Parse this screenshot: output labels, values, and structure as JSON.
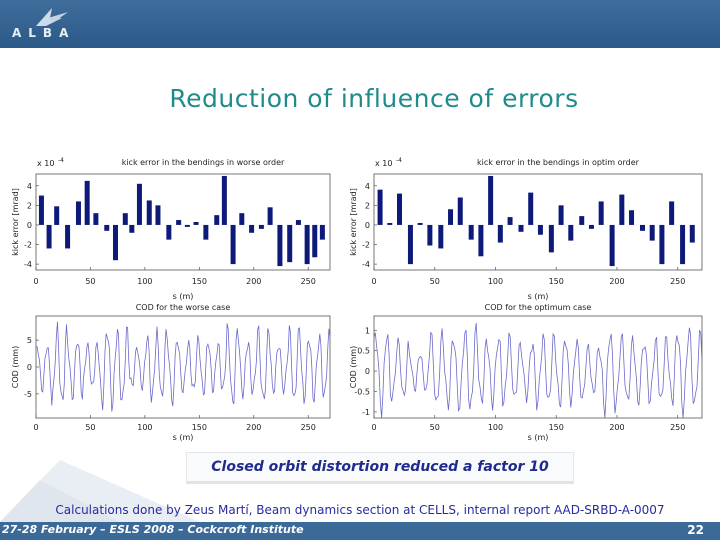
{
  "header": {
    "logo_text": "ALBA",
    "colors": {
      "bar": "#2c5a88"
    }
  },
  "slide": {
    "title": "Reduction of influence of errors",
    "caption": "Closed orbit distortion reduced a factor 10",
    "footnote": "Calculations done by Zeus Martí, Beam dynamics section at CELLS, internal report AAD-SRBD-A-0007",
    "footer_left": "27-28 February – ESLS 2008 – Cockcroft Institute",
    "page_number": "22"
  },
  "chart_data": [
    {
      "type": "bar",
      "title": "kick error in the bendings in worse order",
      "xlabel": "s (m)",
      "ylabel": "kick error [mrad]",
      "y_multiplier": "x 10",
      "y_multiplier_exp": "-4",
      "xlim": [
        0,
        270
      ],
      "ylim": [
        -4.6,
        5.2
      ],
      "xticks": [
        0,
        50,
        100,
        150,
        200,
        250
      ],
      "yticks": [
        4,
        2,
        0,
        -2,
        -4
      ],
      "color": "#0d1a7a",
      "x": [
        5,
        12,
        19,
        29,
        39,
        47,
        55,
        65,
        73,
        82,
        88,
        95,
        104,
        112,
        122,
        131,
        139,
        147,
        156,
        166,
        173,
        181,
        189,
        198,
        207,
        215,
        224,
        233,
        241,
        249,
        256,
        263
      ],
      "values": [
        3.0,
        -2.4,
        1.9,
        -2.4,
        2.4,
        4.5,
        1.2,
        -0.6,
        -3.6,
        1.2,
        -0.8,
        4.2,
        2.5,
        2.0,
        -1.5,
        0.5,
        -0.2,
        0.3,
        -1.5,
        1.0,
        5.0,
        -4.0,
        1.2,
        -0.8,
        -0.4,
        1.8,
        -4.2,
        -3.8,
        0.5,
        -4.0,
        -3.3,
        -1.5
      ]
    },
    {
      "type": "bar",
      "title": "kick error in the bendings in optim order",
      "xlabel": "s (m)",
      "ylabel": "kick error [mrad]",
      "y_multiplier": "x 10",
      "y_multiplier_exp": "-4",
      "xlim": [
        0,
        270
      ],
      "ylim": [
        -4.6,
        5.2
      ],
      "xticks": [
        0,
        50,
        100,
        150,
        200,
        250
      ],
      "yticks": [
        4,
        2,
        0,
        -2,
        -4
      ],
      "color": "#0d1a7a",
      "x": [
        5,
        13,
        21,
        30,
        38,
        46,
        55,
        63,
        71,
        80,
        88,
        96,
        104,
        112,
        121,
        129,
        137,
        146,
        154,
        162,
        171,
        179,
        187,
        196,
        204,
        212,
        221,
        229,
        237,
        245,
        254,
        262
      ],
      "values": [
        3.6,
        0.2,
        3.2,
        -4.0,
        0.2,
        -2.1,
        -2.4,
        1.6,
        2.8,
        -1.5,
        -3.2,
        5.0,
        -1.8,
        0.8,
        -0.7,
        3.3,
        -1.0,
        -2.8,
        2.0,
        -1.6,
        0.9,
        -0.4,
        2.4,
        -4.2,
        3.1,
        1.5,
        -0.6,
        -1.6,
        -4.0,
        2.4,
        -4.0,
        -1.8
      ]
    },
    {
      "type": "line",
      "title": "COD for the worse case",
      "xlabel": "s (m)",
      "ylabel": "COD (mm)",
      "xlim": [
        0,
        270
      ],
      "ylim": [
        -9.5,
        9.5
      ],
      "xticks": [
        0,
        50,
        100,
        150,
        200,
        250
      ],
      "yticks": [
        5,
        0,
        -5
      ],
      "color": "#6a6acc",
      "amplitude": 7.0,
      "seed": 3
    },
    {
      "type": "line",
      "title": "COD for the optimum case",
      "xlabel": "s (m)",
      "ylabel": "COD (mm)",
      "xlim": [
        0,
        270
      ],
      "ylim": [
        -1.15,
        1.35
      ],
      "xticks": [
        0,
        50,
        100,
        150,
        200,
        250
      ],
      "yticks": [
        1,
        0.5,
        0,
        -0.5,
        -1
      ],
      "color": "#6a6acc",
      "amplitude": 0.95,
      "seed": 11
    }
  ]
}
